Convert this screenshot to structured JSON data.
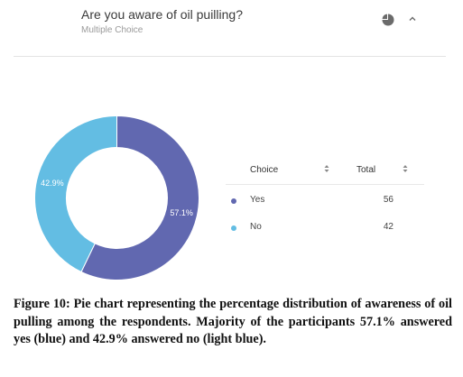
{
  "card": {
    "question": "Are you aware of oil puilling?",
    "type_label": "Multiple Choice",
    "chart_icon": "pie-chart-icon",
    "collapse_icon": "chevron-up-icon"
  },
  "chart_data": {
    "type": "pie",
    "donut": true,
    "slices": [
      {
        "label": "Yes",
        "value": 56,
        "percent_label": "57.1%",
        "color": "#6168b0"
      },
      {
        "label": "No",
        "value": 42,
        "percent_label": "42.9%",
        "color": "#63bde3"
      }
    ]
  },
  "table": {
    "col_choice": "Choice",
    "col_total": "Total",
    "sort_icon": "sort-icon",
    "rows": [
      {
        "choice": "Yes",
        "total": "56",
        "color": "#6168b0"
      },
      {
        "choice": "No",
        "total": "42",
        "color": "#63bde3"
      }
    ]
  },
  "caption": "Figure 10: Pie chart representing the percentage distribution of awareness of oil pulling among the respondents. Majority of the participants 57.1% answered yes (blue) and 42.9% answered no (light blue)."
}
